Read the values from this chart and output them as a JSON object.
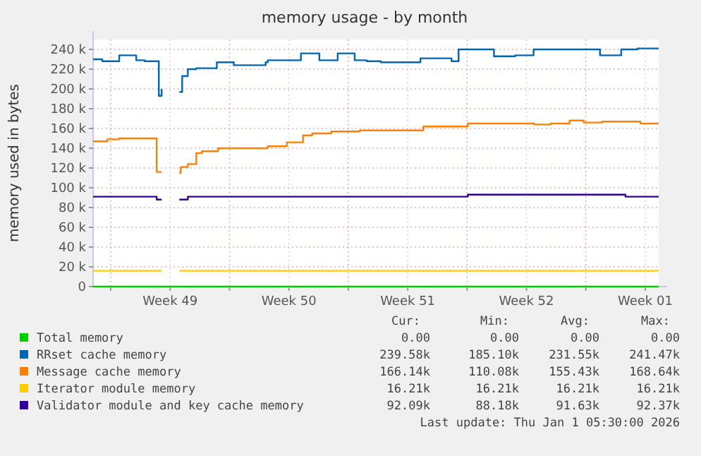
{
  "chart_data": {
    "type": "step",
    "title": "memory usage - by month",
    "ylabel": "memory used in bytes",
    "xlim": [
      "2025-11-29T23:00",
      "2026-01-02T07:00"
    ],
    "xticks": [
      {
        "value": "2025-12-01T00:00",
        "label": null
      },
      {
        "value": "2025-12-04T12:00",
        "label": "Week 49"
      },
      {
        "value": "2025-12-08T00:00",
        "label": null
      },
      {
        "value": "2025-12-11T12:00",
        "label": "Week 50"
      },
      {
        "value": "2025-12-15T00:00",
        "label": null
      },
      {
        "value": "2025-12-18T12:00",
        "label": "Week 51"
      },
      {
        "value": "2025-12-22T00:00",
        "label": null
      },
      {
        "value": "2025-12-25T12:00",
        "label": "Week 52"
      },
      {
        "value": "2025-12-29T00:00",
        "label": null
      },
      {
        "value": "2026-01-01T12:00",
        "label": "Week 01"
      }
    ],
    "ylim": [
      0,
      250000
    ],
    "yticks": [
      {
        "value": 0,
        "label": "0"
      },
      {
        "value": 20000,
        "label": "20 k"
      },
      {
        "value": 40000,
        "label": "40 k"
      },
      {
        "value": 60000,
        "label": "60 k"
      },
      {
        "value": 80000,
        "label": "80 k"
      },
      {
        "value": 100000,
        "label": "100 k"
      },
      {
        "value": 120000,
        "label": "120 k"
      },
      {
        "value": 140000,
        "label": "140 k"
      },
      {
        "value": 160000,
        "label": "160 k"
      },
      {
        "value": 180000,
        "label": "180 k"
      },
      {
        "value": 200000,
        "label": "200 k"
      },
      {
        "value": 220000,
        "label": "220 k"
      },
      {
        "value": 240000,
        "label": "240 k"
      }
    ],
    "grid": true,
    "legend": "bottom",
    "line_style": "solid",
    "series": [
      {
        "name": "Total memory",
        "color": "#00cc00",
        "x": [
          "2025-11-29T23:00",
          "2026-01-02T07:00"
        ],
        "values": [
          0,
          0
        ]
      },
      {
        "name": "RRset cache memory",
        "color": "#0066b3",
        "x": [
          "2025-11-29T23:00",
          "2025-11-30T12:00",
          "2025-12-01T12:00",
          "2025-12-02T12:00",
          "2025-12-03T00:00",
          "2025-12-03T20:00",
          "2025-12-04T00:00",
          "2025-12-04T01:00",
          "2025-12-05T01:00",
          "2025-12-05T05:00",
          "2025-12-05T13:00",
          "2025-12-06T01:00",
          "2025-12-07T06:00",
          "2025-12-08T06:00",
          "2025-12-10T03:00",
          "2025-12-10T06:00",
          "2025-12-12T05:00",
          "2025-12-13T07:00",
          "2025-12-14T09:00",
          "2025-12-15T09:00",
          "2025-12-16T02:00",
          "2025-12-16T22:00",
          "2025-12-19T06:00",
          "2025-12-21T02:00",
          "2025-12-21T12:00",
          "2025-12-23T14:00",
          "2025-12-24T20:00",
          "2025-12-25T22:00",
          "2025-12-29T20:00",
          "2025-12-31T02:00",
          "2026-01-01T01:00",
          "2026-01-02T07:00"
        ],
        "values": [
          230000,
          228000,
          234000,
          229000,
          228000,
          193000,
          200000,
          null,
          197000,
          213000,
          220000,
          221000,
          227000,
          224000,
          227000,
          229000,
          236000,
          229000,
          236000,
          229000,
          228000,
          227000,
          231000,
          228000,
          240000,
          233000,
          234000,
          240000,
          234000,
          240000,
          241000,
          241000
        ]
      },
      {
        "name": "Message cache memory",
        "color": "#ff8000",
        "x": [
          "2025-11-29T23:00",
          "2025-11-30T19:00",
          "2025-12-01T12:00",
          "2025-12-03T17:00",
          "2025-12-04T00:00",
          "2025-12-04T01:00",
          "2025-12-05T01:00",
          "2025-12-05T03:00",
          "2025-12-05T13:00",
          "2025-12-06T01:00",
          "2025-12-06T09:00",
          "2025-12-07T08:00",
          "2025-12-10T06:00",
          "2025-12-11T09:00",
          "2025-12-12T08:00",
          "2025-12-12T21:00",
          "2025-12-14T00:00",
          "2025-12-15T16:00",
          "2025-12-19T10:00",
          "2025-12-22T01:00",
          "2025-12-25T23:00",
          "2025-12-26T22:00",
          "2025-12-28T01:00",
          "2025-12-28T21:00",
          "2025-12-29T23:00",
          "2026-01-01T05:00",
          "2026-01-02T07:00"
        ],
        "values": [
          147000,
          149000,
          150000,
          116000,
          116000,
          null,
          115000,
          121000,
          124000,
          135000,
          137000,
          140000,
          142000,
          146000,
          153000,
          155000,
          157000,
          158000,
          162000,
          165000,
          164000,
          165000,
          168000,
          166000,
          167000,
          165000,
          165000
        ]
      },
      {
        "name": "Iterator module memory",
        "color": "#ffcc00",
        "x": [
          "2025-11-29T23:00",
          "2025-12-04T00:00",
          "2025-12-04T01:00",
          "2025-12-05T01:00",
          "2026-01-02T07:00"
        ],
        "values": [
          16000,
          16000,
          null,
          16000,
          16000
        ]
      },
      {
        "name": "Validator module and key cache memory",
        "color": "#330099",
        "x": [
          "2025-11-29T23:00",
          "2025-12-03T17:00",
          "2025-12-04T00:00",
          "2025-12-04T01:00",
          "2025-12-05T01:00",
          "2025-12-05T13:00",
          "2025-12-22T01:00",
          "2025-12-31T08:00",
          "2026-01-02T07:00"
        ],
        "values": [
          91000,
          88000,
          88000,
          null,
          88000,
          91000,
          93000,
          91000,
          91000
        ]
      }
    ],
    "annotations": [
      "Cur:",
      "Min:",
      "Avg:",
      "Max:",
      "0.00",
      "0.00",
      "0.00",
      "0.00",
      "239.58k",
      "185.10k",
      "231.55k",
      "241.47k",
      "166.14k",
      "110.08k",
      "155.43k",
      "168.64k",
      "16.21k",
      "16.21k",
      "16.21k",
      "16.21k",
      "92.09k",
      "88.18k",
      "91.63k",
      "92.37k",
      "Last update: Thu Jan  1 05:30:00 2026"
    ]
  }
}
